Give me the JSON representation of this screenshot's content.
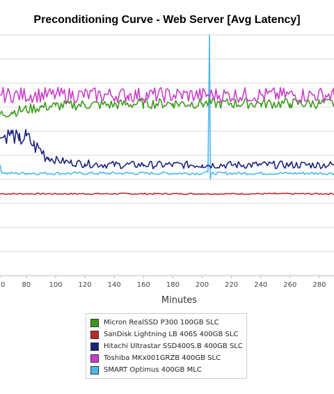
{
  "chart_data": {
    "type": "line",
    "title": "Preconditioning Curve - Web Server [Avg Latency]",
    "xlabel": "Minutes",
    "ylabel": "",
    "x_ticks": [
      "0",
      "80",
      "100",
      "120",
      "140",
      "160",
      "180",
      "200",
      "220",
      "240",
      "260",
      "280"
    ],
    "xlim": [
      62,
      290
    ],
    "ylim": [
      0,
      100
    ],
    "grid": true,
    "legend_position": "bottom",
    "series": [
      {
        "name": "Micron RealSSD P300 100GB SLC",
        "color": "#3a9a1a",
        "x": [
          62,
          70,
          80,
          90,
          100,
          120,
          140,
          160,
          180,
          200,
          220,
          240,
          260,
          280,
          290
        ],
        "values": [
          67,
          68,
          69,
          70,
          70.5,
          71,
          71,
          71.5,
          71.5,
          71.5,
          71.5,
          71.5,
          71.5,
          71.5,
          71.5
        ]
      },
      {
        "name": "SanDisk Lightning LB 406S 400GB SLC",
        "color": "#c0292a",
        "x": [
          62,
          100,
          150,
          200,
          250,
          290
        ],
        "values": [
          34,
          34,
          34,
          34,
          34,
          34
        ]
      },
      {
        "name": "Hitachi Ultrastar SSD400S.B 400GB SLC",
        "color": "#1a237e",
        "x": [
          62,
          65,
          70,
          75,
          80,
          85,
          90,
          95,
          100,
          110,
          120,
          140,
          160,
          180,
          200,
          220,
          240,
          260,
          280,
          290
        ],
        "values": [
          57,
          58,
          59,
          56,
          58,
          54,
          52,
          49,
          48,
          47,
          46.5,
          46,
          46,
          46,
          46,
          46,
          46,
          46,
          46,
          46
        ]
      },
      {
        "name": "Toshiba MKx001GRZB 400GB SLC",
        "color": "#cc3ccc",
        "x": [
          62,
          100,
          150,
          200,
          250,
          290
        ],
        "values": [
          75,
          75,
          75,
          75,
          75,
          75
        ]
      },
      {
        "name": "SMART Optimus 400GB MLC",
        "color": "#4ab8ee",
        "x": [
          62,
          63,
          66,
          80,
          100,
          150,
          200,
          204,
          205,
          205.6,
          206,
          207,
          230,
          260,
          290
        ],
        "values": [
          46,
          43,
          42.5,
          42.5,
          42.5,
          42.5,
          42.5,
          43,
          100,
          40,
          42.5,
          42.5,
          42.5,
          42.5,
          42.5
        ]
      }
    ]
  }
}
